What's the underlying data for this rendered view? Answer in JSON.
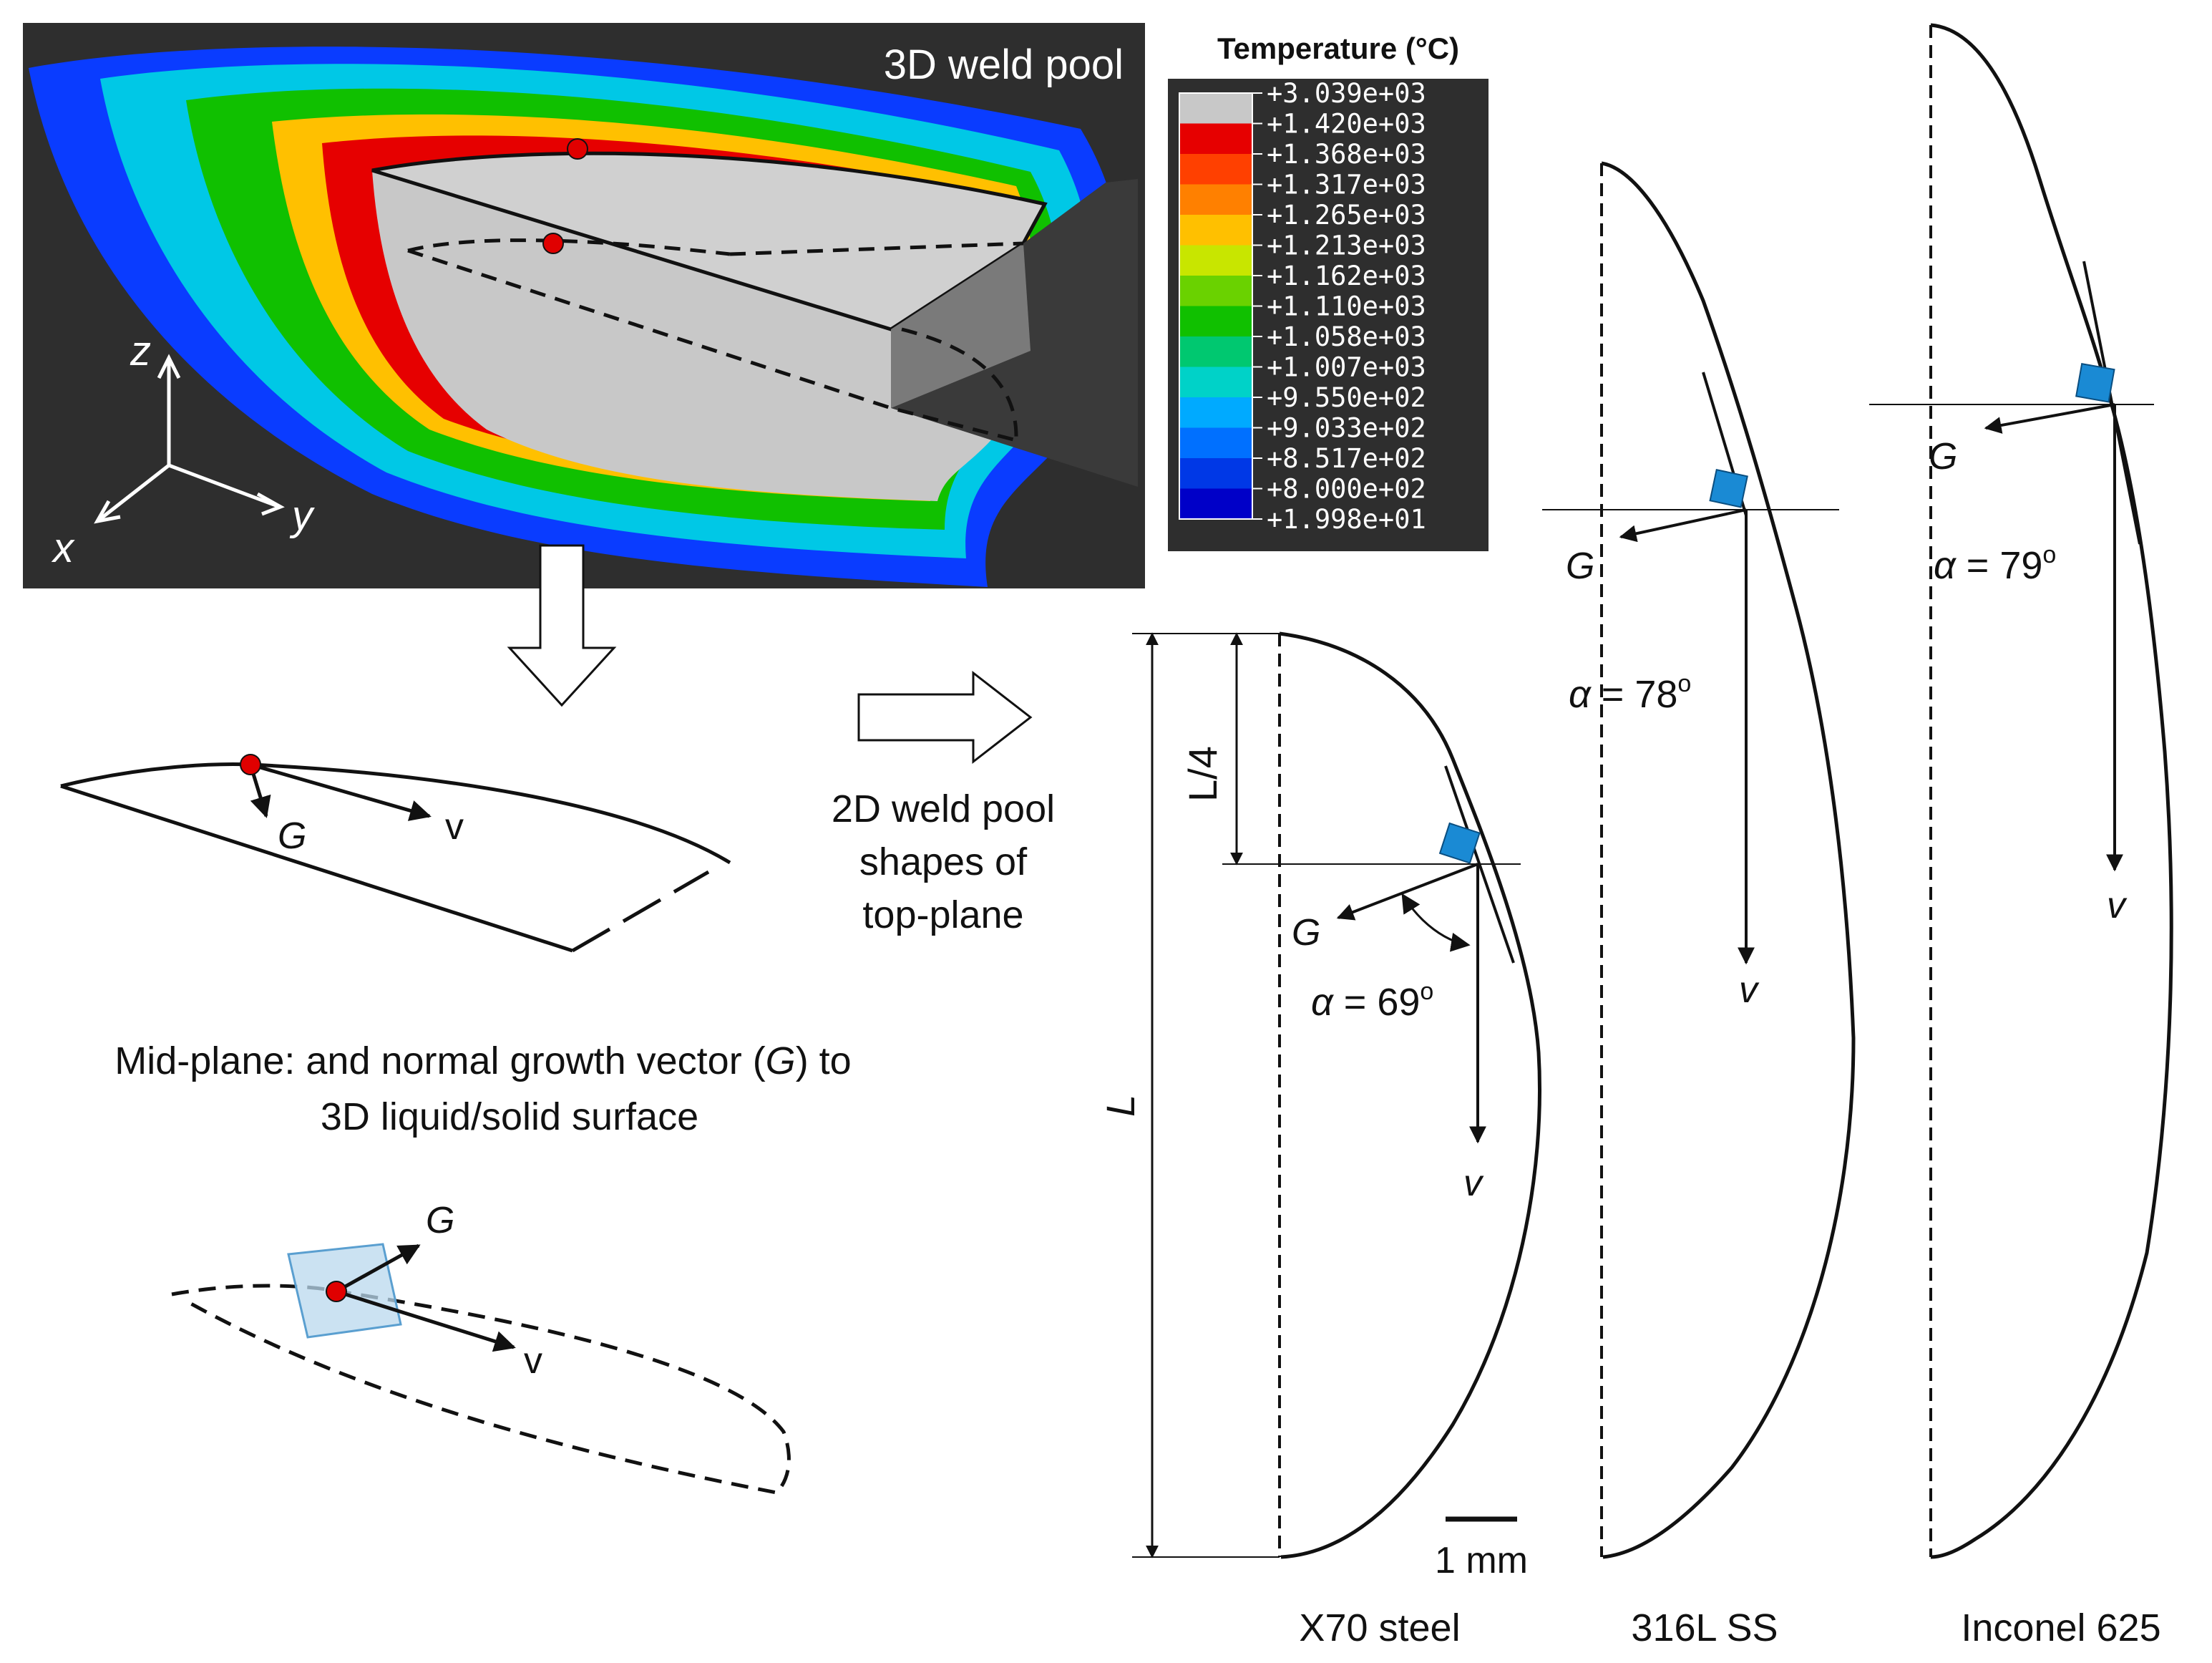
{
  "panel3d": {
    "title": "3D weld pool",
    "axes": {
      "z": "z",
      "x": "x",
      "y": "y"
    }
  },
  "legend": {
    "title": "Temperature (°C)",
    "values": [
      "+3.039e+03",
      "+1.420e+03",
      "+1.368e+03",
      "+1.317e+03",
      "+1.265e+03",
      "+1.213e+03",
      "+1.162e+03",
      "+1.110e+03",
      "+1.058e+03",
      "+1.007e+03",
      "+9.550e+02",
      "+9.033e+02",
      "+8.517e+02",
      "+8.000e+02",
      "+1.998e+01"
    ],
    "colors": [
      "#c8c8c8",
      "#e60000",
      "#ff4000",
      "#ff8000",
      "#ffc000",
      "#c8e600",
      "#6ad200",
      "#10c000",
      "#00c870",
      "#00d2c8",
      "#00aaff",
      "#0070ff",
      "#0038e6",
      "#0000c8"
    ]
  },
  "midplane": {
    "g_label": "G",
    "v_label": "v",
    "caption_line1_pre": "Mid-plane: and normal growth vector (",
    "caption_line1_g": "G",
    "caption_line1_post": ") to",
    "caption_line2": "3D liquid/solid surface"
  },
  "surface_detail": {
    "g_label": "G",
    "v_label": "v"
  },
  "arrow_caption": [
    "2D weld pool",
    "shapes of",
    "top-plane"
  ],
  "x70": {
    "name": "X70 steel",
    "L_label": "L",
    "L4_label": "L/4",
    "g_label": "G",
    "v_label": "v",
    "alpha_sym": "α",
    "alpha_text": " = 69",
    "deg": "o",
    "scale_label": "1 mm"
  },
  "ss316": {
    "name": "316L SS",
    "g_label": "G",
    "v_label": "v",
    "alpha_sym": "α",
    "alpha_text": " = 78",
    "deg": "o"
  },
  "inconel": {
    "name": "Inconel 625",
    "g_label": "G",
    "v_label": "v",
    "alpha_sym": "α",
    "alpha_text": " = 79",
    "deg": "o"
  }
}
